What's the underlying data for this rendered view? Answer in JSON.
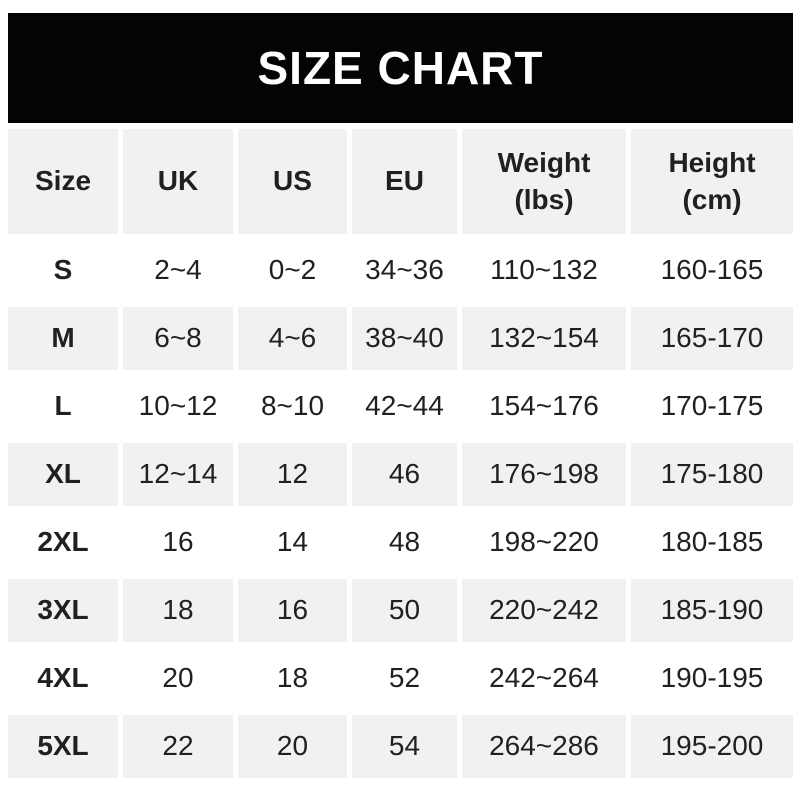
{
  "banner": {
    "background_color": "#040404",
    "text_color": "#ffffff"
  },
  "table": {
    "stripe_color": "#f1f1f1",
    "text_color": "#1e2024"
  },
  "header": [
    {
      "label": "Size",
      "unit": ""
    },
    {
      "label": "UK",
      "unit": ""
    },
    {
      "label": "US",
      "unit": ""
    },
    {
      "label": "EU",
      "unit": ""
    },
    {
      "label": "Weight",
      "unit": "(lbs)"
    },
    {
      "label": "Height",
      "unit": "(cm)"
    }
  ],
  "chart_data": {
    "type": "table",
    "title": "SIZE CHART",
    "columns": [
      "Size",
      "UK",
      "US",
      "EU",
      "Weight (lbs)",
      "Height (cm)"
    ],
    "rows": [
      [
        "S",
        "2~4",
        "0~2",
        "34~36",
        "110~132",
        "160-165"
      ],
      [
        "M",
        "6~8",
        "4~6",
        "38~40",
        "132~154",
        "165-170"
      ],
      [
        "L",
        "10~12",
        "8~10",
        "42~44",
        "154~176",
        "170-175"
      ],
      [
        "XL",
        "12~14",
        "12",
        "46",
        "176~198",
        "175-180"
      ],
      [
        "2XL",
        "16",
        "14",
        "48",
        "198~220",
        "180-185"
      ],
      [
        "3XL",
        "18",
        "16",
        "50",
        "220~242",
        "185-190"
      ],
      [
        "4XL",
        "20",
        "18",
        "52",
        "242~264",
        "190-195"
      ],
      [
        "5XL",
        "22",
        "20",
        "54",
        "264~286",
        "195-200"
      ]
    ],
    "layout": {
      "header_background": "#f1f1f1",
      "row_striping": "alternating white and #f1f1f1 starting with white",
      "grid": "5px white gaps between cells"
    }
  }
}
